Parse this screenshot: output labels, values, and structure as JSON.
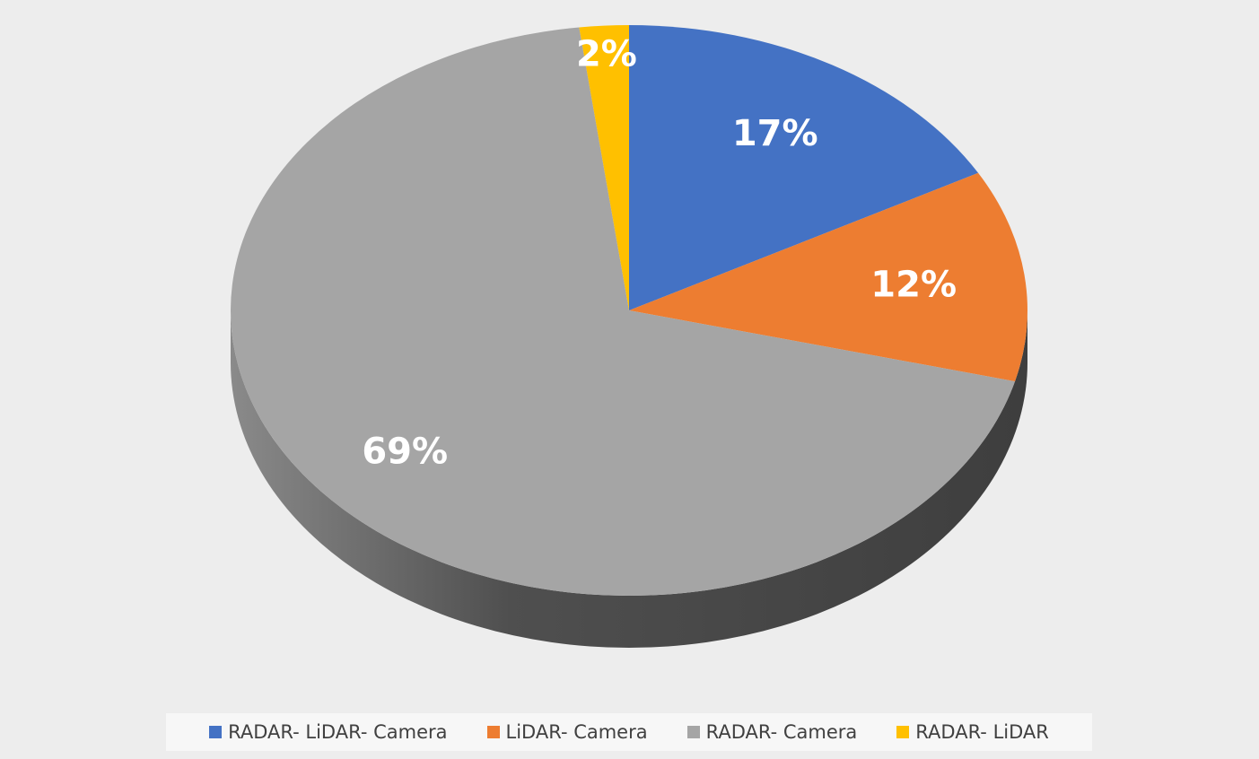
{
  "chart_data": {
    "type": "pie",
    "style": "3d",
    "categories": [
      "RADAR- LiDAR- Camera",
      "LiDAR- Camera",
      "RADAR- Camera",
      "RADAR- LiDAR"
    ],
    "values": [
      17,
      12,
      69,
      2
    ],
    "data_labels": [
      "17%",
      "12%",
      "69%",
      "2%"
    ],
    "colors": [
      "#4472c4",
      "#ed7d31",
      "#a5a5a5",
      "#ffc000"
    ],
    "side_color": "#474747",
    "legend_position": "bottom",
    "title": ""
  }
}
